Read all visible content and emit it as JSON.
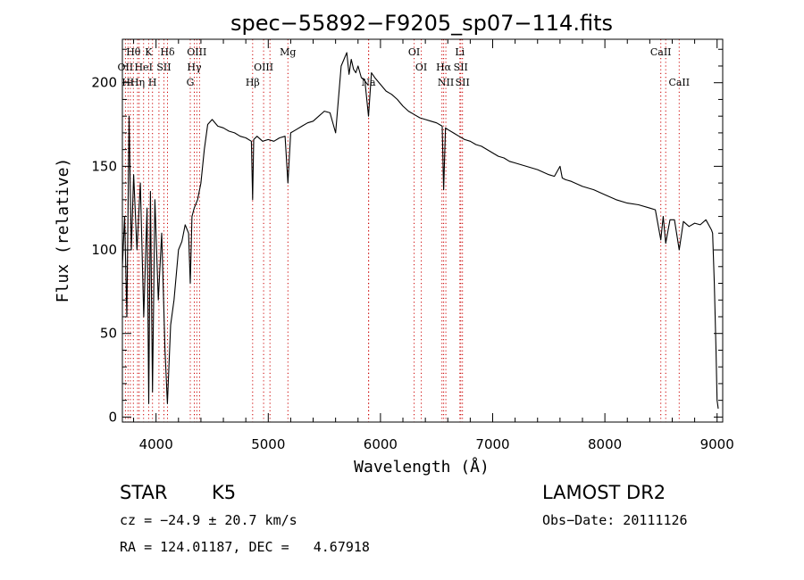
{
  "chart_data": {
    "type": "line",
    "title": "spec−55892−F9205_sp07−114.fits",
    "xlabel": "Wavelength (Å)",
    "ylabel": "Flux (relative)",
    "xlim": [
      3700,
      9050
    ],
    "ylim": [
      -3,
      226
    ],
    "x_ticks": [
      4000,
      5000,
      6000,
      7000,
      8000,
      9000
    ],
    "y_ticks": [
      0,
      50,
      100,
      150,
      200
    ],
    "grid": false,
    "line_color": "#000000",
    "marker_color": "#cc0000",
    "series": [
      {
        "x": [
          3700,
          3720,
          3740,
          3760,
          3780,
          3800,
          3830,
          3860,
          3890,
          3920,
          3935,
          3950,
          3968,
          3990,
          4020,
          4050,
          4080,
          4101,
          4130,
          4160,
          4200,
          4230,
          4260,
          4290,
          4305,
          4320,
          4340,
          4370,
          4400,
          4430,
          4460,
          4500,
          4550,
          4600,
          4650,
          4700,
          4750,
          4800,
          4850,
          4861,
          4870,
          4900,
          4950,
          5000,
          5050,
          5100,
          5150,
          5175,
          5200,
          5250,
          5300,
          5350,
          5400,
          5450,
          5500,
          5550,
          5600,
          5650,
          5700,
          5720,
          5740,
          5760,
          5780,
          5800,
          5830,
          5860,
          5893,
          5920,
          5950,
          6000,
          6050,
          6100,
          6150,
          6200,
          6250,
          6300,
          6350,
          6400,
          6450,
          6500,
          6550,
          6563,
          6580,
          6600,
          6650,
          6700,
          6750,
          6800,
          6850,
          6900,
          6950,
          7000,
          7050,
          7100,
          7150,
          7200,
          7300,
          7400,
          7500,
          7550,
          7600,
          7620,
          7650,
          7700,
          7800,
          7900,
          8000,
          8100,
          8200,
          8300,
          8400,
          8450,
          8498,
          8520,
          8542,
          8580,
          8620,
          8662,
          8700,
          8750,
          8800,
          8850,
          8900,
          8950,
          8960,
          8975,
          8990,
          9000,
          9010
        ],
        "y": [
          90,
          120,
          60,
          180,
          100,
          145,
          100,
          140,
          60,
          125,
          8,
          135,
          15,
          130,
          70,
          110,
          40,
          8,
          55,
          70,
          100,
          105,
          115,
          110,
          80,
          120,
          125,
          130,
          140,
          160,
          175,
          178,
          174,
          173,
          171,
          170,
          168,
          167,
          165,
          130,
          166,
          168,
          165,
          166,
          165,
          167,
          168,
          140,
          170,
          172,
          174,
          176,
          177,
          180,
          183,
          182,
          170,
          210,
          218,
          205,
          214,
          208,
          206,
          210,
          203,
          202,
          180,
          206,
          203,
          199,
          195,
          193,
          190,
          186,
          183,
          181,
          179,
          178,
          177,
          176,
          174,
          136,
          173,
          172,
          170,
          168,
          166,
          165,
          163,
          162,
          160,
          158,
          156,
          155,
          153,
          152,
          150,
          148,
          145,
          144,
          150,
          143,
          142,
          141,
          138,
          136,
          133,
          130,
          128,
          127,
          125,
          124,
          106,
          120,
          104,
          118,
          118,
          100,
          117,
          114,
          116,
          115,
          118,
          112,
          110,
          80,
          40,
          10,
          5
        ]
      }
    ],
    "lines": [
      {
        "name": "Hθ",
        "x": 3798,
        "tier": 0
      },
      {
        "name": "K",
        "x": 3934,
        "tier": 0
      },
      {
        "name": "Hδ",
        "x": 4102,
        "tier": 0
      },
      {
        "name": "OIII",
        "x": 4363,
        "tier": 0
      },
      {
        "name": "Mg",
        "x": 5175,
        "tier": 0
      },
      {
        "name": "OI",
        "x": 6300,
        "tier": 0
      },
      {
        "name": "Li",
        "x": 6708,
        "tier": 0
      },
      {
        "name": "CaII",
        "x": 8498,
        "tier": 0
      },
      {
        "name": "OII",
        "x": 3727,
        "tier": 1
      },
      {
        "name": "HeI",
        "x": 3889,
        "tier": 1
      },
      {
        "name": "SII",
        "x": 4070,
        "tier": 1
      },
      {
        "name": "Hγ",
        "x": 4341,
        "tier": 1
      },
      {
        "name": "OIII",
        "x": 4959,
        "tier": 1
      },
      {
        "name": "OI",
        "x": 6364,
        "tier": 1
      },
      {
        "name": "Hα",
        "x": 6563,
        "tier": 1
      },
      {
        "name": "SII",
        "x": 6716,
        "tier": 1
      },
      {
        "name": "Hι",
        "x": 3750,
        "tier": 2
      },
      {
        "name": "Hη",
        "x": 3835,
        "tier": 2
      },
      {
        "name": "H",
        "x": 3968,
        "tier": 2
      },
      {
        "name": "G",
        "x": 4305,
        "tier": 2
      },
      {
        "name": "Hβ",
        "x": 4861,
        "tier": 2
      },
      {
        "name": "Na",
        "x": 5893,
        "tier": 2
      },
      {
        "name": "NII",
        "x": 6583,
        "tier": 2
      },
      {
        "name": "SII",
        "x": 6731,
        "tier": 2
      },
      {
        "name": "CaII",
        "x": 8662,
        "tier": 2
      }
    ],
    "extra_markers": [
      3771,
      3850,
      4026,
      4388,
      5015,
      5895,
      6548,
      8542
    ]
  },
  "info": {
    "class_label": "STAR",
    "subclass": "K5",
    "survey": "LAMOST DR2",
    "redshift": "cz = −24.9 ± 20.7 km/s",
    "obs_date": "Obs−Date: 20111126",
    "coords": "RA = 124.01187, DEC =   4.67918"
  }
}
